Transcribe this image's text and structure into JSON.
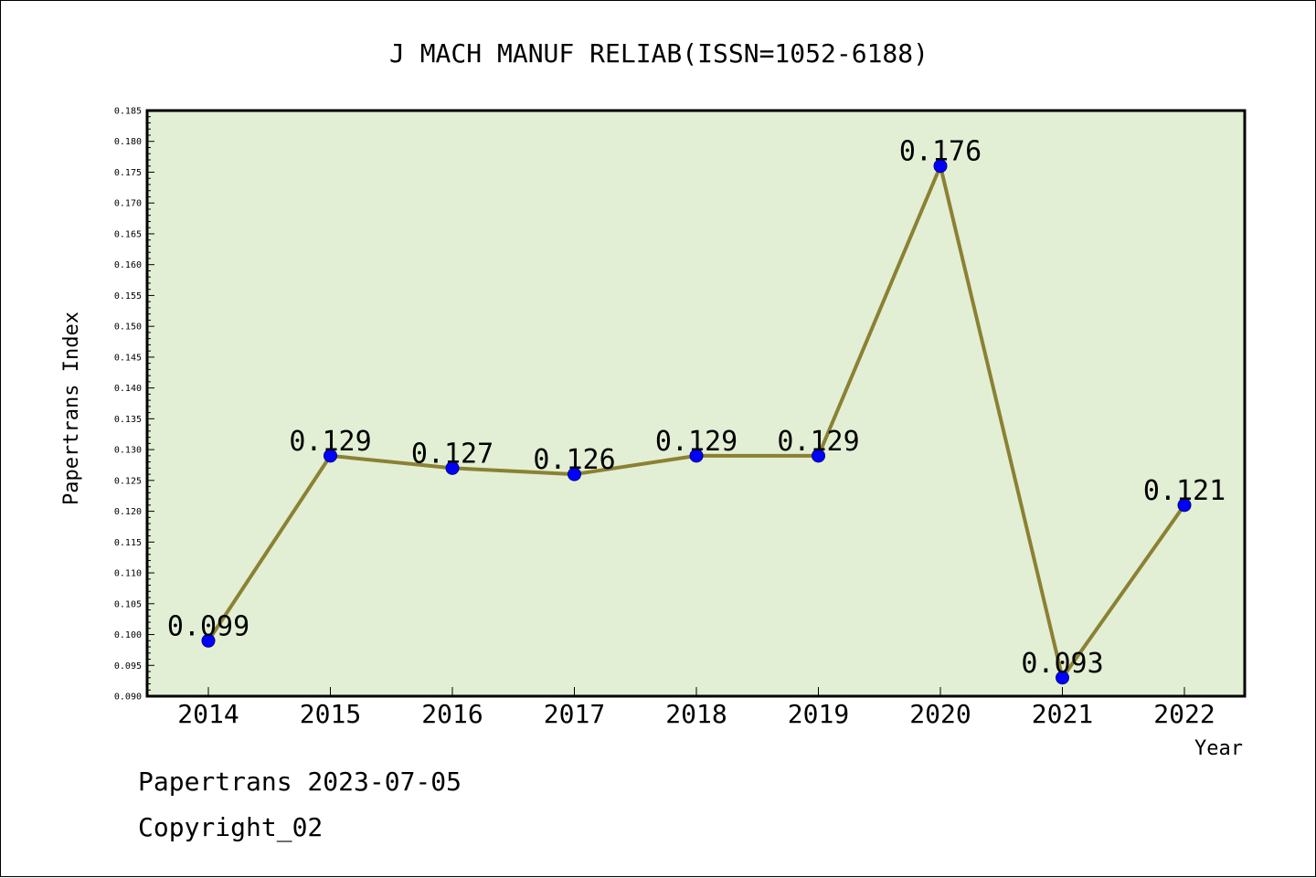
{
  "chart_data": {
    "type": "line",
    "title": "J MACH MANUF RELIAB(ISSN=1052-6188)",
    "xlabel": "Year",
    "ylabel": "Papertrans Index",
    "categories": [
      "2014",
      "2015",
      "2016",
      "2017",
      "2018",
      "2019",
      "2020",
      "2021",
      "2022"
    ],
    "values": [
      0.099,
      0.129,
      0.127,
      0.126,
      0.129,
      0.129,
      0.176,
      0.093,
      0.121
    ],
    "data_labels": [
      "0.099",
      "0.129",
      "0.127",
      "0.126",
      "0.129",
      "0.129",
      "0.176",
      "0.093",
      "0.121"
    ],
    "ylim": [
      0.09,
      0.185
    ],
    "ytick_step": 0.005,
    "ytick_labels": [
      "0.090",
      "0.095",
      "0.100",
      "0.105",
      "0.110",
      "0.115",
      "0.120",
      "0.125",
      "0.130",
      "0.135",
      "0.140",
      "0.145",
      "0.150",
      "0.155",
      "0.160",
      "0.165",
      "0.170",
      "0.175",
      "0.180",
      "0.185"
    ],
    "grid": false,
    "colors": {
      "plot_background": "#e2efd4",
      "line": "#8b8133",
      "marker": "#0000ff"
    }
  },
  "footer": {
    "line1": "Papertrans 2023-07-05",
    "line2": "Copyright_02"
  }
}
